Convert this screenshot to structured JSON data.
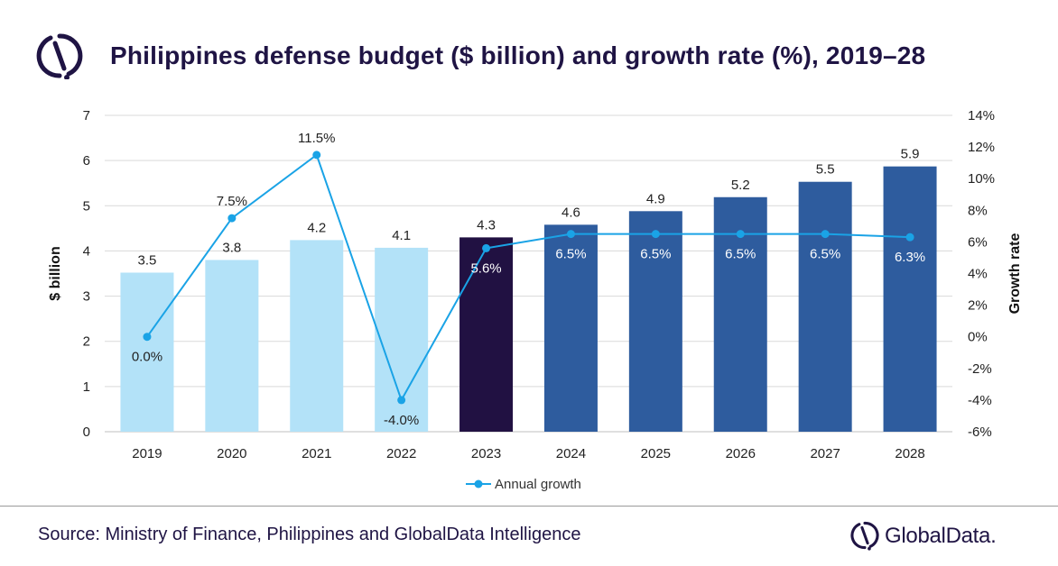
{
  "header": {
    "title": "Philippines defense budget ($ billion) and growth rate (%), 2019–28"
  },
  "footer": {
    "source": "Source: Ministry of Finance, Philippines and GlobalData Intelligence",
    "brand_name": "GlobalData."
  },
  "icons": {
    "header_logo": "globaldata-logo-icon",
    "footer_logo": "globaldata-logo-icon"
  },
  "colors": {
    "historical_bar": "#b3e2f8",
    "current_bar": "#211142",
    "forecast_bar": "#2e5c9e",
    "growth_line": "#1aa3e6",
    "title": "#1f1444"
  },
  "chart_data": {
    "type": "bar",
    "categories": [
      "2019",
      "2020",
      "2021",
      "2022",
      "2023",
      "2024",
      "2025",
      "2026",
      "2027",
      "2028"
    ],
    "series": [
      {
        "axis": "left",
        "type": "bar",
        "values": [
          3.52,
          3.8,
          4.24,
          4.07,
          4.3,
          4.58,
          4.88,
          5.19,
          5.53,
          5.87
        ],
        "labels": [
          "3.5",
          "3.8",
          "4.2",
          "4.1",
          "4.3",
          "4.6",
          "4.9",
          "5.2",
          "5.5",
          "5.9"
        ],
        "colors": [
          "historical_bar",
          "historical_bar",
          "historical_bar",
          "historical_bar",
          "current_bar",
          "forecast_bar",
          "forecast_bar",
          "forecast_bar",
          "forecast_bar",
          "forecast_bar"
        ]
      },
      {
        "name": "Annual growth",
        "axis": "right",
        "type": "line",
        "values": [
          0.0,
          7.5,
          11.5,
          -4.0,
          5.6,
          6.5,
          6.5,
          6.5,
          6.5,
          6.3
        ],
        "labels": [
          "0.0%",
          "7.5%",
          "11.5%",
          "-4.0%",
          "5.6%",
          "6.5%",
          "6.5%",
          "6.5%",
          "6.5%",
          "6.3%"
        ]
      }
    ],
    "ylabel": "$ billion",
    "ylabel_right": "Growth rate",
    "ylim": [
      0,
      7
    ],
    "yticks": [
      "0",
      "1",
      "2",
      "3",
      "4",
      "5",
      "6",
      "7"
    ],
    "ylim_right": [
      -6,
      14
    ],
    "yticks_right": [
      "-6%",
      "-4%",
      "-2%",
      "0%",
      "2%",
      "4%",
      "6%",
      "8%",
      "10%",
      "12%",
      "14%"
    ],
    "grid": true,
    "legend": "bottom"
  }
}
